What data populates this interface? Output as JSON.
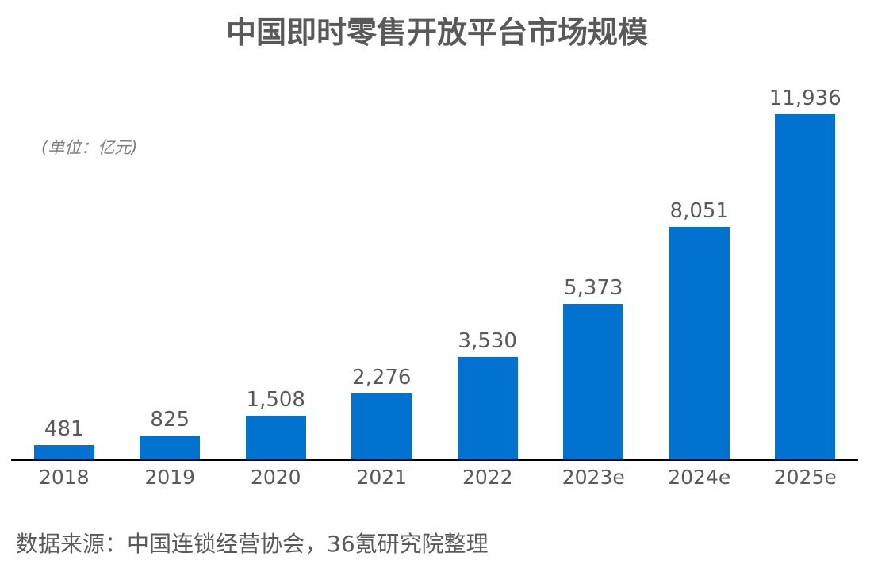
{
  "title": "中国即时零售开放平台市场规模",
  "unit_label": "(单位：亿元)",
  "source": "数据来源：中国连锁经营协会，36氪研究院整理",
  "colors": {
    "bar": "#0272D0",
    "title_text": "#595959",
    "value_label_text": "#595959",
    "tick_label_text": "#595959",
    "unit_text": "#7f7f7f",
    "source_text": "#595959",
    "axis_line": "#000000",
    "background": "#ffffff"
  },
  "chart_data": {
    "type": "bar",
    "title": "中国即时零售开放平台市场规模",
    "categories": [
      "2018",
      "2019",
      "2020",
      "2021",
      "2022",
      "2023e",
      "2024e",
      "2025e"
    ],
    "values": [
      481,
      825,
      1508,
      2276,
      3530,
      5373,
      8051,
      11936
    ],
    "value_labels": [
      "481",
      "825",
      "1,508",
      "2,276",
      "3,530",
      "5,373",
      "8,051",
      "11,936"
    ],
    "xlabel": "",
    "ylabel": "亿元",
    "ylim": [
      0,
      11936
    ],
    "grid": false,
    "legend": false,
    "bar_color": "#0272D0"
  }
}
